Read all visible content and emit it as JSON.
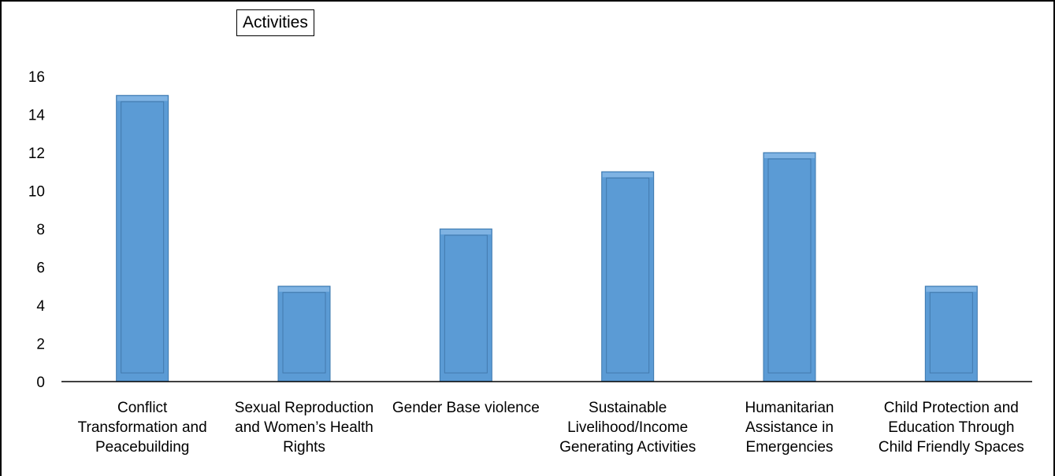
{
  "chart_data": {
    "type": "bar",
    "title": "Activities",
    "categories": [
      [
        "Conflict",
        "Transformation and",
        "Peacebuilding"
      ],
      [
        "Sexual Reproduction",
        "and Women’s Health",
        "Rights"
      ],
      [
        "Gender Base violence"
      ],
      [
        "Sustainable",
        "Livelihood/Income",
        "Generating Activities"
      ],
      [
        "Humanitarian",
        "Assistance in",
        "Emergencies"
      ],
      [
        "Child Protection and",
        "Education Through",
        "Child Friendly Spaces"
      ]
    ],
    "values": [
      15,
      5,
      8,
      11,
      12,
      5
    ],
    "yticks": [
      0,
      2,
      4,
      6,
      8,
      10,
      12,
      14,
      16
    ],
    "ylim": [
      0,
      16
    ],
    "xlabel": "",
    "ylabel": "",
    "grid": false,
    "legend": "none",
    "colors": {
      "bar_fill": "#5B9BD5",
      "bar_top": "#7FB3E3",
      "bar_edge": "#3E78AE",
      "bar_inner_edge": "#2F5F8C",
      "axis": "#000000"
    }
  }
}
